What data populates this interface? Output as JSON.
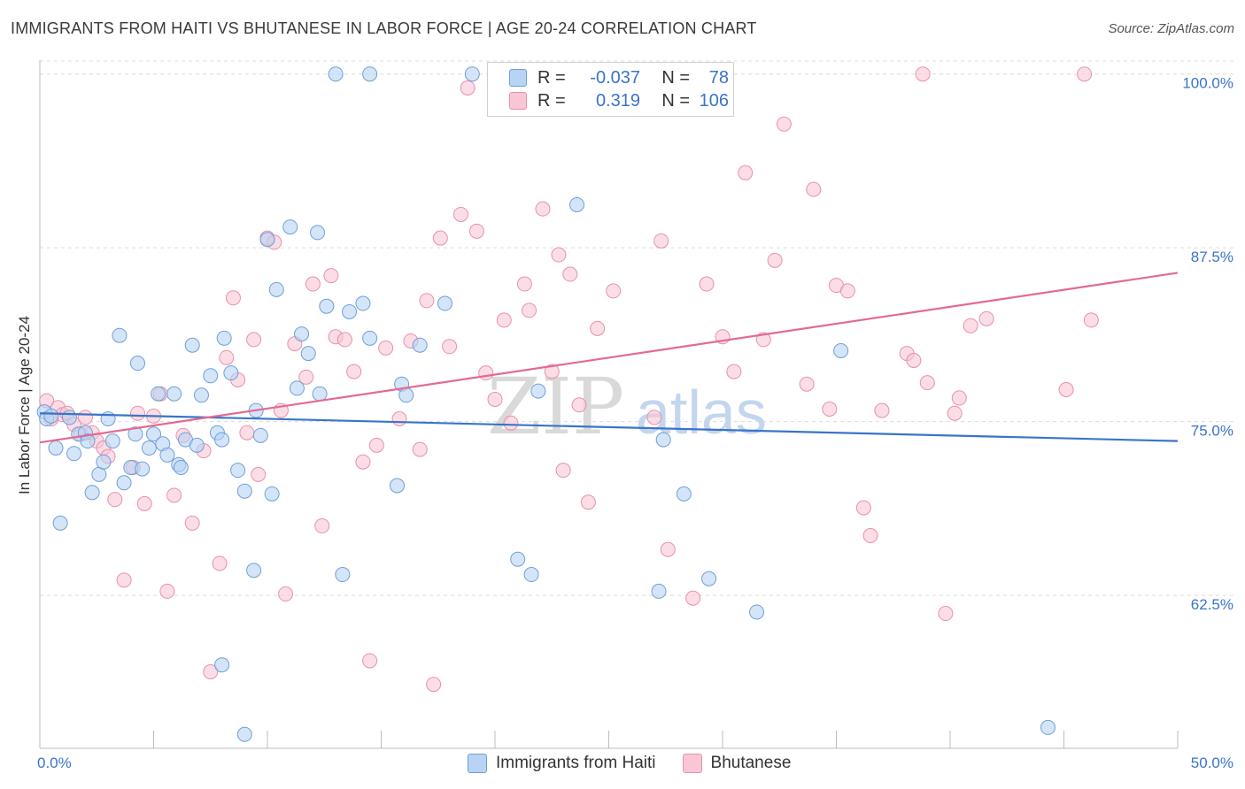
{
  "title": "IMMIGRANTS FROM HAITI VS BHUTANESE IN LABOR FORCE | AGE 20-24 CORRELATION CHART",
  "source": "Source: ZipAtlas.com",
  "watermark": {
    "zip": "ZIP",
    "atlas": "atlas"
  },
  "legend": {
    "haiti": {
      "r_label": "R =",
      "r_value": "-0.037",
      "n_label": "N =",
      "n_value": "78"
    },
    "bhutanese": {
      "r_label": "R =",
      "r_value": "0.319",
      "n_label": "N =",
      "n_value": "106"
    }
  },
  "bottom_legend": {
    "haiti": "Immigrants from Haiti",
    "bhutanese": "Bhutanese"
  },
  "colors": {
    "haiti_fill": "#b8d3f4",
    "haiti_stroke": "#6f9fd8",
    "haiti_line": "#3a74c9",
    "bhutanese_fill": "#f9c6d6",
    "bhutanese_stroke": "#e891ab",
    "bhutanese_line": "#e26a92",
    "axis_text": "#3a74c9"
  },
  "chart_data": {
    "type": "scatter",
    "title": "IMMIGRANTS FROM HAITI VS BHUTANESE IN LABOR FORCE | AGE 20-24 CORRELATION CHART",
    "xlabel": "",
    "ylabel": "In Labor Force | Age 20-24",
    "xlim": [
      0,
      50
    ],
    "ylim": [
      51.5,
      101
    ],
    "x_tick_labels": [
      "0.0%",
      "50.0%"
    ],
    "y_ticks": [
      62.5,
      75.0,
      87.5,
      100.0
    ],
    "y_tick_labels": [
      "62.5%",
      "75.0%",
      "87.5%",
      "100.0%"
    ],
    "grid": true,
    "legend_position": "top-center",
    "series": [
      {
        "name": "Immigrants from Haiti",
        "r": -0.037,
        "n": 78,
        "trend": {
          "x": [
            0,
            50
          ],
          "y": [
            75.6,
            73.6
          ]
        },
        "points": [
          [
            0.2,
            75.7
          ],
          [
            0.3,
            75.2
          ],
          [
            0.5,
            75.4
          ],
          [
            0.7,
            73.1
          ],
          [
            0.9,
            67.7
          ],
          [
            1.3,
            75.3
          ],
          [
            1.5,
            72.7
          ],
          [
            1.7,
            74.1
          ],
          [
            2.0,
            74.2
          ],
          [
            2.1,
            73.6
          ],
          [
            2.3,
            69.9
          ],
          [
            2.6,
            71.2
          ],
          [
            2.8,
            72.1
          ],
          [
            3.0,
            75.2
          ],
          [
            3.2,
            73.6
          ],
          [
            3.5,
            81.2
          ],
          [
            3.7,
            70.6
          ],
          [
            4.0,
            71.7
          ],
          [
            4.2,
            74.1
          ],
          [
            4.3,
            79.2
          ],
          [
            4.5,
            71.6
          ],
          [
            4.8,
            73.1
          ],
          [
            5.0,
            74.1
          ],
          [
            5.2,
            77.0
          ],
          [
            5.4,
            73.4
          ],
          [
            5.6,
            72.6
          ],
          [
            5.9,
            77.0
          ],
          [
            6.1,
            71.9
          ],
          [
            6.2,
            71.7
          ],
          [
            6.4,
            73.7
          ],
          [
            6.7,
            80.5
          ],
          [
            6.9,
            73.3
          ],
          [
            7.1,
            76.9
          ],
          [
            7.5,
            78.3
          ],
          [
            7.8,
            74.2
          ],
          [
            8.0,
            73.7
          ],
          [
            8.1,
            81.0
          ],
          [
            8.4,
            78.5
          ],
          [
            8.7,
            71.5
          ],
          [
            9.0,
            70.0
          ],
          [
            9.4,
            64.3
          ],
          [
            9.5,
            75.8
          ],
          [
            9.7,
            74.0
          ],
          [
            10.0,
            88.1
          ],
          [
            10.2,
            69.8
          ],
          [
            10.4,
            84.5
          ],
          [
            11.0,
            89.0
          ],
          [
            11.5,
            81.3
          ],
          [
            11.3,
            77.4
          ],
          [
            11.8,
            79.9
          ],
          [
            12.2,
            88.6
          ],
          [
            12.3,
            77.0
          ],
          [
            12.6,
            83.3
          ],
          [
            13.0,
            100.0
          ],
          [
            13.3,
            64.0
          ],
          [
            13.6,
            82.9
          ],
          [
            14.2,
            83.5
          ],
          [
            14.5,
            81.0
          ],
          [
            14.5,
            100.0
          ],
          [
            15.7,
            70.4
          ],
          [
            15.9,
            77.7
          ],
          [
            16.1,
            76.9
          ],
          [
            16.7,
            80.5
          ],
          [
            17.8,
            83.5
          ],
          [
            19.0,
            100.0
          ],
          [
            21.0,
            65.1
          ],
          [
            21.6,
            64.0
          ],
          [
            21.9,
            77.2
          ],
          [
            23.6,
            90.6
          ],
          [
            27.2,
            62.8
          ],
          [
            27.4,
            73.7
          ],
          [
            28.3,
            69.8
          ],
          [
            29.4,
            63.7
          ],
          [
            31.5,
            61.3
          ],
          [
            35.2,
            80.1
          ],
          [
            44.3,
            53.0
          ],
          [
            8.0,
            57.5
          ],
          [
            9.0,
            52.5
          ]
        ]
      },
      {
        "name": "Bhutanese",
        "r": 0.319,
        "n": 106,
        "trend": {
          "x": [
            0,
            50
          ],
          "y": [
            73.5,
            85.7
          ]
        },
        "points": [
          [
            0.3,
            76.5
          ],
          [
            0.5,
            75.2
          ],
          [
            0.8,
            76.0
          ],
          [
            1.0,
            75.5
          ],
          [
            1.2,
            75.6
          ],
          [
            1.5,
            74.8
          ],
          [
            1.8,
            74.1
          ],
          [
            2.0,
            75.3
          ],
          [
            2.3,
            74.2
          ],
          [
            2.5,
            73.6
          ],
          [
            2.8,
            73.1
          ],
          [
            3.0,
            72.5
          ],
          [
            3.3,
            69.4
          ],
          [
            3.7,
            63.6
          ],
          [
            4.1,
            71.7
          ],
          [
            4.3,
            75.6
          ],
          [
            4.6,
            69.1
          ],
          [
            5.0,
            75.4
          ],
          [
            5.3,
            77.0
          ],
          [
            5.6,
            62.8
          ],
          [
            5.9,
            69.7
          ],
          [
            6.3,
            74.0
          ],
          [
            6.7,
            67.7
          ],
          [
            7.2,
            72.9
          ],
          [
            7.5,
            57.0
          ],
          [
            7.9,
            64.8
          ],
          [
            8.2,
            79.6
          ],
          [
            8.5,
            83.9
          ],
          [
            8.7,
            78.0
          ],
          [
            9.1,
            74.2
          ],
          [
            9.4,
            80.9
          ],
          [
            9.6,
            71.2
          ],
          [
            10.0,
            88.2
          ],
          [
            10.3,
            87.9
          ],
          [
            10.6,
            75.8
          ],
          [
            10.8,
            62.6
          ],
          [
            11.2,
            80.6
          ],
          [
            11.7,
            78.2
          ],
          [
            12.0,
            84.9
          ],
          [
            12.4,
            67.5
          ],
          [
            12.8,
            85.5
          ],
          [
            13.0,
            81.1
          ],
          [
            13.4,
            80.9
          ],
          [
            13.8,
            78.6
          ],
          [
            14.2,
            72.1
          ],
          [
            14.5,
            57.8
          ],
          [
            14.8,
            73.3
          ],
          [
            15.2,
            80.3
          ],
          [
            15.8,
            75.2
          ],
          [
            16.3,
            80.8
          ],
          [
            16.7,
            73.0
          ],
          [
            17.0,
            83.7
          ],
          [
            17.3,
            56.1
          ],
          [
            17.6,
            88.2
          ],
          [
            18.0,
            80.4
          ],
          [
            18.5,
            89.9
          ],
          [
            18.8,
            99.0
          ],
          [
            19.2,
            88.7
          ],
          [
            19.6,
            78.5
          ],
          [
            20.0,
            76.6
          ],
          [
            20.4,
            82.3
          ],
          [
            20.7,
            74.9
          ],
          [
            21.3,
            84.9
          ],
          [
            21.5,
            83.0
          ],
          [
            22.1,
            90.3
          ],
          [
            22.5,
            78.6
          ],
          [
            22.8,
            87.0
          ],
          [
            23.0,
            71.5
          ],
          [
            23.3,
            85.6
          ],
          [
            23.7,
            76.2
          ],
          [
            24.1,
            69.2
          ],
          [
            24.5,
            81.7
          ],
          [
            25.2,
            84.4
          ],
          [
            25.8,
            100.0
          ],
          [
            27.0,
            75.3
          ],
          [
            27.3,
            88.0
          ],
          [
            27.6,
            65.8
          ],
          [
            28.7,
            62.3
          ],
          [
            29.3,
            84.9
          ],
          [
            30.0,
            81.1
          ],
          [
            30.5,
            78.6
          ],
          [
            31.0,
            92.9
          ],
          [
            31.8,
            80.9
          ],
          [
            32.3,
            86.6
          ],
          [
            32.7,
            96.4
          ],
          [
            33.7,
            77.7
          ],
          [
            34.0,
            91.7
          ],
          [
            34.7,
            75.9
          ],
          [
            35.0,
            84.8
          ],
          [
            35.5,
            84.4
          ],
          [
            36.2,
            68.8
          ],
          [
            36.5,
            66.8
          ],
          [
            37.0,
            75.8
          ],
          [
            38.1,
            79.9
          ],
          [
            38.4,
            79.4
          ],
          [
            38.8,
            100.0
          ],
          [
            39.0,
            77.8
          ],
          [
            39.8,
            61.2
          ],
          [
            40.2,
            75.6
          ],
          [
            40.4,
            76.7
          ],
          [
            40.9,
            81.9
          ],
          [
            41.6,
            82.4
          ],
          [
            45.1,
            77.3
          ],
          [
            45.9,
            100.0
          ],
          [
            46.2,
            82.3
          ],
          [
            20.5,
            100.0
          ]
        ]
      }
    ]
  }
}
